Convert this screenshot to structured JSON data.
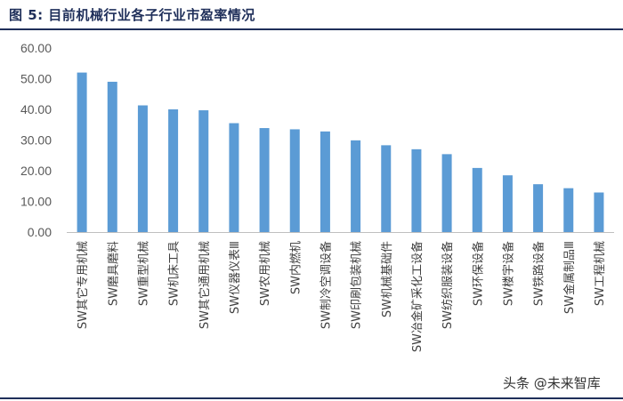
{
  "figure": {
    "title": "图 5:  目前机械行业各子行业市盈率情况"
  },
  "watermark": {
    "text": "头条 @未来智库"
  },
  "chart_data": {
    "type": "bar",
    "title": "",
    "xlabel": "",
    "ylabel": "",
    "ylim": [
      0,
      60
    ],
    "yticks": [
      "0.00",
      "10.00",
      "20.00",
      "30.00",
      "40.00",
      "50.00",
      "60.00"
    ],
    "bar_color": "#5b9bd5",
    "grid": false,
    "legend": "none",
    "categories": [
      "SW其它专用机械",
      "SW磨具磨料",
      "SW重型机械",
      "SW机床工具",
      "SW其它通用机械",
      "SW仪器仪表Ⅲ",
      "SW农用机械",
      "SW内燃机",
      "SW制冷空调设备",
      "SW印刷包装机械",
      "SW机械基础件",
      "SW冶金矿采化工设备",
      "SW纺织服装设备",
      "SW环保设备",
      "SW楼宇设备",
      "SW铁路设备",
      "SW金属制品Ⅲ",
      "SW工程机械"
    ],
    "values": [
      52.0,
      49.0,
      41.3,
      40.0,
      39.7,
      35.5,
      33.9,
      33.5,
      32.8,
      29.9,
      28.3,
      27.0,
      25.4,
      20.9,
      18.5,
      15.6,
      14.3,
      12.9
    ]
  }
}
